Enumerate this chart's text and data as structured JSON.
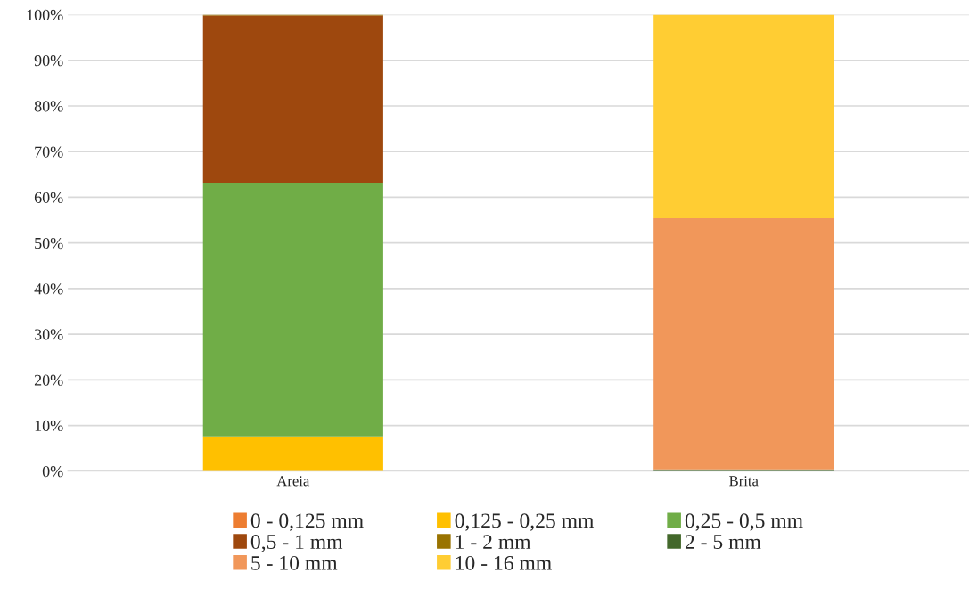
{
  "chart_data": {
    "type": "bar",
    "stacked": true,
    "categories": [
      "Areia",
      "Brita"
    ],
    "series": [
      {
        "name": "0 - 0,125 mm",
        "color": "#ed7d31",
        "values": [
          0,
          0
        ]
      },
      {
        "name": "0,125 - 0,25 mm",
        "color": "#ffc000",
        "values": [
          7.6,
          0
        ]
      },
      {
        "name": "0,25 - 0,5 mm",
        "color": "#70ad47",
        "values": [
          55.6,
          0
        ]
      },
      {
        "name": "0,5 - 1 mm",
        "color": "#9e480e",
        "values": [
          36.6,
          0
        ]
      },
      {
        "name": "1 - 2 mm",
        "color": "#997300",
        "values": [
          0.2,
          0
        ]
      },
      {
        "name": "2 - 5 mm",
        "color": "#43682b",
        "values": [
          0,
          0.4
        ]
      },
      {
        "name": "5 - 10 mm",
        "color": "#f1975a",
        "values": [
          0,
          55.0
        ]
      },
      {
        "name": "10 - 16 mm",
        "color": "#ffcd33",
        "values": [
          0,
          44.6
        ]
      }
    ],
    "ylim": [
      0,
      100
    ],
    "yticks": [
      {
        "value": 0,
        "label": "0%"
      },
      {
        "value": 10,
        "label": "10%"
      },
      {
        "value": 20,
        "label": "20%"
      },
      {
        "value": 30,
        "label": "30%"
      },
      {
        "value": 40,
        "label": "40%"
      },
      {
        "value": 50,
        "label": "50%"
      },
      {
        "value": 60,
        "label": "60%"
      },
      {
        "value": 70,
        "label": "70%"
      },
      {
        "value": 80,
        "label": "80%"
      },
      {
        "value": 90,
        "label": "90%"
      },
      {
        "value": 100,
        "label": "100%"
      }
    ],
    "grid": "y",
    "legend": "bottom"
  }
}
